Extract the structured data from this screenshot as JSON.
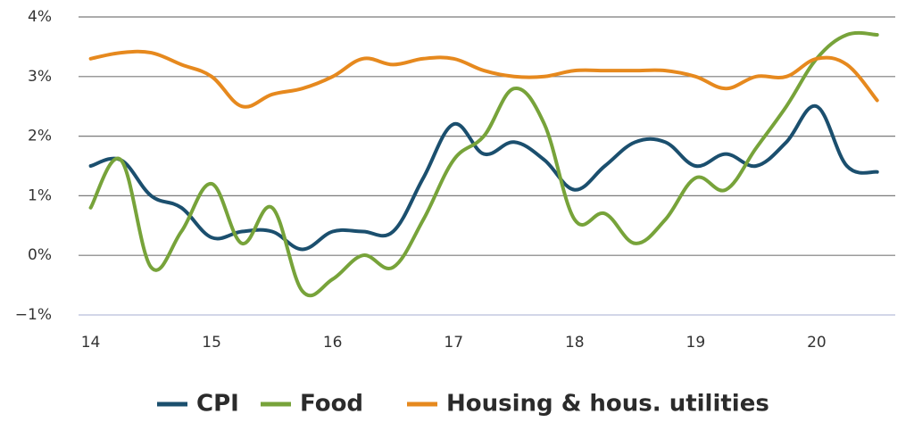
{
  "chart_data": {
    "type": "line",
    "title": "",
    "xlabel": "",
    "ylabel": "",
    "x_ticks": [
      "14",
      "15",
      "16",
      "17",
      "18",
      "19",
      "20"
    ],
    "x_tick_values": [
      14,
      15,
      16,
      17,
      18,
      19,
      20
    ],
    "y_ticks": [
      "4%",
      "3%",
      "2%",
      "1%",
      "0%",
      "−1%"
    ],
    "y_tick_values": [
      4,
      3,
      2,
      1,
      0,
      -1
    ],
    "xlim": [
      13.9,
      20.65
    ],
    "ylim": [
      -1,
      4
    ],
    "grid": true,
    "legend_position": "bottom-center",
    "x": [
      14.0,
      14.25,
      14.5,
      14.75,
      15.0,
      15.25,
      15.5,
      15.75,
      16.0,
      16.25,
      16.5,
      16.75,
      17.0,
      17.25,
      17.5,
      17.75,
      18.0,
      18.25,
      18.5,
      18.75,
      19.0,
      19.25,
      19.5,
      19.75,
      20.0,
      20.25,
      20.5
    ],
    "series": [
      {
        "name": "CPI",
        "color": "#1b4f6e",
        "values": [
          1.5,
          1.6,
          1.0,
          0.8,
          0.3,
          0.4,
          0.4,
          0.1,
          0.4,
          0.4,
          0.4,
          1.3,
          2.2,
          1.7,
          1.9,
          1.6,
          1.1,
          1.5,
          1.9,
          1.9,
          1.5,
          1.7,
          1.5,
          1.9,
          2.5,
          1.5,
          1.4
        ]
      },
      {
        "name": "Food",
        "color": "#77a33a",
        "values": [
          0.8,
          1.6,
          -0.2,
          0.4,
          1.2,
          0.2,
          0.8,
          -0.6,
          -0.4,
          0.0,
          -0.2,
          0.6,
          1.6,
          2.0,
          2.8,
          2.2,
          0.6,
          0.7,
          0.2,
          0.6,
          1.3,
          1.1,
          1.8,
          2.5,
          3.3,
          3.7,
          3.7
        ]
      },
      {
        "name": "Housing & hous. utilities",
        "color": "#e6891e",
        "values": [
          3.3,
          3.4,
          3.4,
          3.2,
          3.0,
          2.5,
          2.7,
          2.8,
          3.0,
          3.3,
          3.2,
          3.3,
          3.3,
          3.1,
          3.0,
          3.0,
          3.1,
          3.1,
          3.1,
          3.1,
          3.0,
          2.8,
          3.0,
          3.0,
          3.3,
          3.2,
          2.6
        ]
      }
    ]
  }
}
